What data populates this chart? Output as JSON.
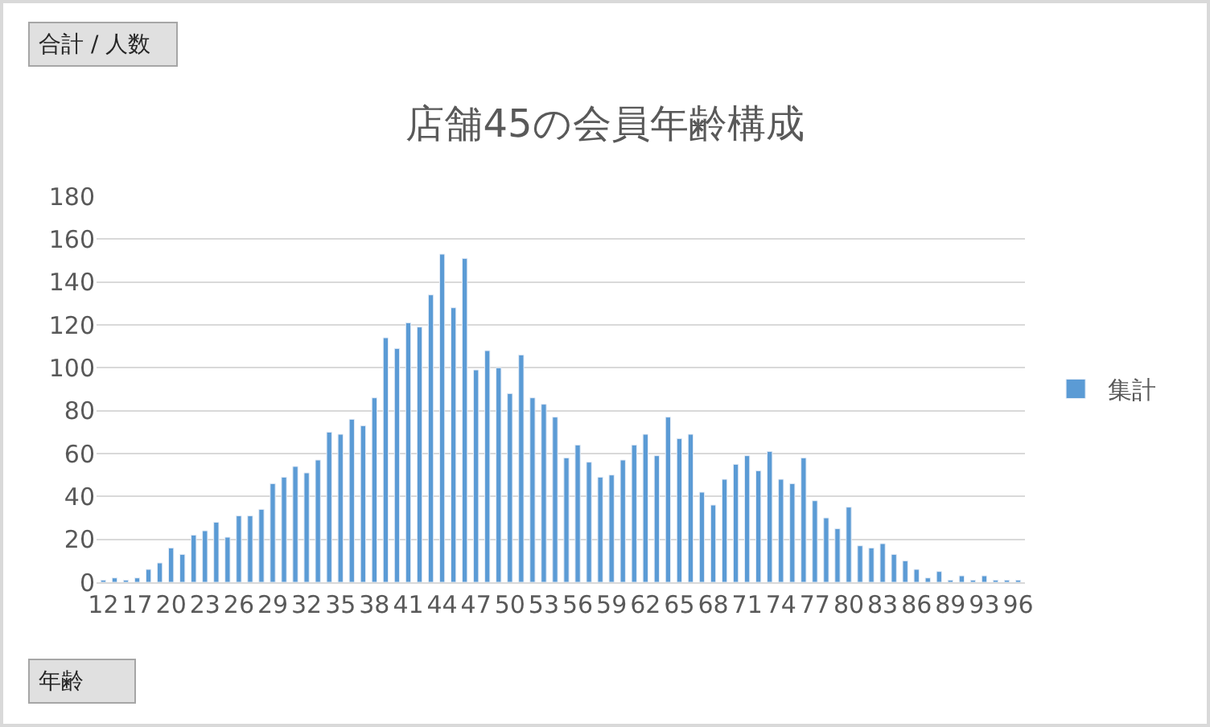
{
  "chart_data": {
    "type": "bar",
    "title": "店舗45の会員年齢構成",
    "categories": [
      "12",
      null,
      null,
      "17",
      null,
      null,
      "20",
      null,
      null,
      "23",
      null,
      null,
      "26",
      null,
      null,
      "29",
      null,
      null,
      "32",
      null,
      null,
      "35",
      null,
      null,
      "38",
      null,
      null,
      "41",
      null,
      null,
      "44",
      null,
      null,
      "47",
      null,
      null,
      "50",
      null,
      null,
      "53",
      null,
      null,
      "56",
      null,
      null,
      "59",
      null,
      null,
      "62",
      null,
      null,
      "65",
      null,
      null,
      "68",
      null,
      null,
      "71",
      null,
      null,
      "74",
      null,
      null,
      "77",
      null,
      null,
      "80",
      null,
      null,
      "83",
      null,
      null,
      "86",
      null,
      null,
      "89",
      null,
      null,
      "93",
      null,
      null,
      "96"
    ],
    "series": [
      {
        "name": "集計",
        "color": "#5b9bd5",
        "values": [
          1,
          2,
          1,
          2,
          6,
          9,
          16,
          13,
          22,
          24,
          28,
          21,
          31,
          31,
          34,
          46,
          49,
          54,
          51,
          57,
          70,
          69,
          76,
          73,
          86,
          114,
          109,
          121,
          119,
          134,
          153,
          128,
          151,
          99,
          108,
          100,
          88,
          106,
          86,
          83,
          77,
          58,
          64,
          56,
          49,
          50,
          57,
          64,
          69,
          59,
          77,
          67,
          69,
          42,
          36,
          48,
          55,
          59,
          52,
          61,
          48,
          46,
          58,
          38,
          30,
          25,
          35,
          17,
          16,
          18,
          13,
          10,
          6,
          2,
          5,
          1,
          3,
          1,
          3,
          1,
          1,
          1
        ]
      }
    ],
    "ylim": [
      0,
      180
    ],
    "yticks": [
      0,
      20,
      40,
      60,
      80,
      100,
      120,
      140,
      160,
      180
    ],
    "grid": "y",
    "legend": "right",
    "annotations": [
      "合計 / 人数",
      "年齢"
    ]
  }
}
